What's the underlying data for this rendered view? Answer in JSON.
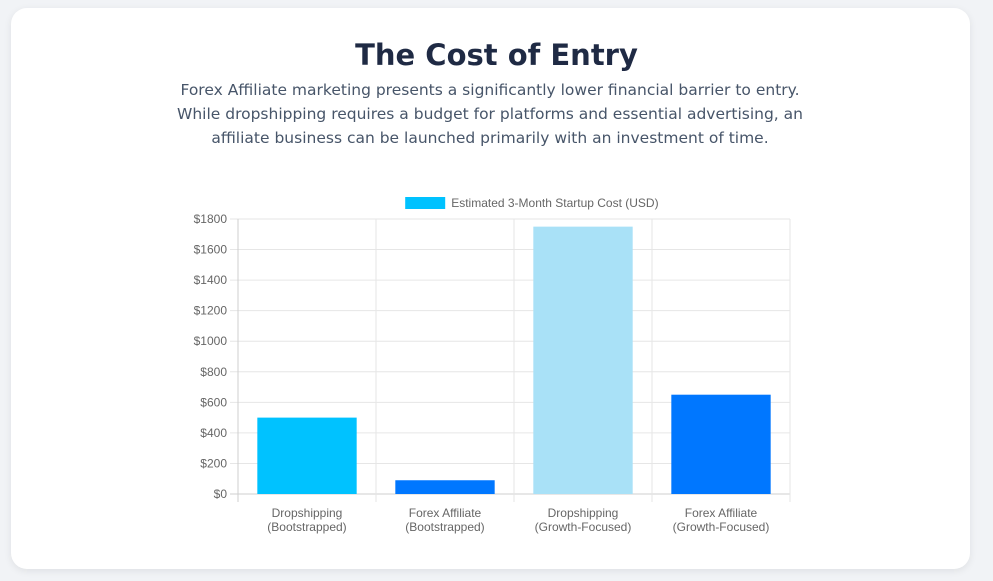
{
  "header": {
    "title": "The Cost of Entry",
    "subtitle": "Forex Affiliate marketing presents a significantly lower financial barrier to entry. While dropshipping requires a budget for platforms and essential advertising, an affiliate business can be launched primarily with an investment of time."
  },
  "chart_data": {
    "type": "bar",
    "categories": [
      [
        "Dropshipping",
        "(Bootstrapped)"
      ],
      [
        "Forex Affiliate",
        "(Bootstrapped)"
      ],
      [
        "Dropshipping",
        "(Growth-Focused)"
      ],
      [
        "Forex Affiliate",
        "(Growth-Focused)"
      ]
    ],
    "series": [
      {
        "name": "Estimated 3-Month Startup Cost (USD)",
        "values": [
          500,
          90,
          1750,
          650
        ],
        "colors": [
          "#00c2ff",
          "#0077ff",
          "#a9e1f7",
          "#0077ff"
        ]
      }
    ],
    "ylim": [
      0,
      1800
    ],
    "yticks": [
      0,
      200,
      400,
      600,
      800,
      1000,
      1200,
      1400,
      1600,
      1800
    ],
    "ytick_prefix": "$",
    "legend_position": "top",
    "legend_color": "#00c2ff",
    "grid": true
  }
}
